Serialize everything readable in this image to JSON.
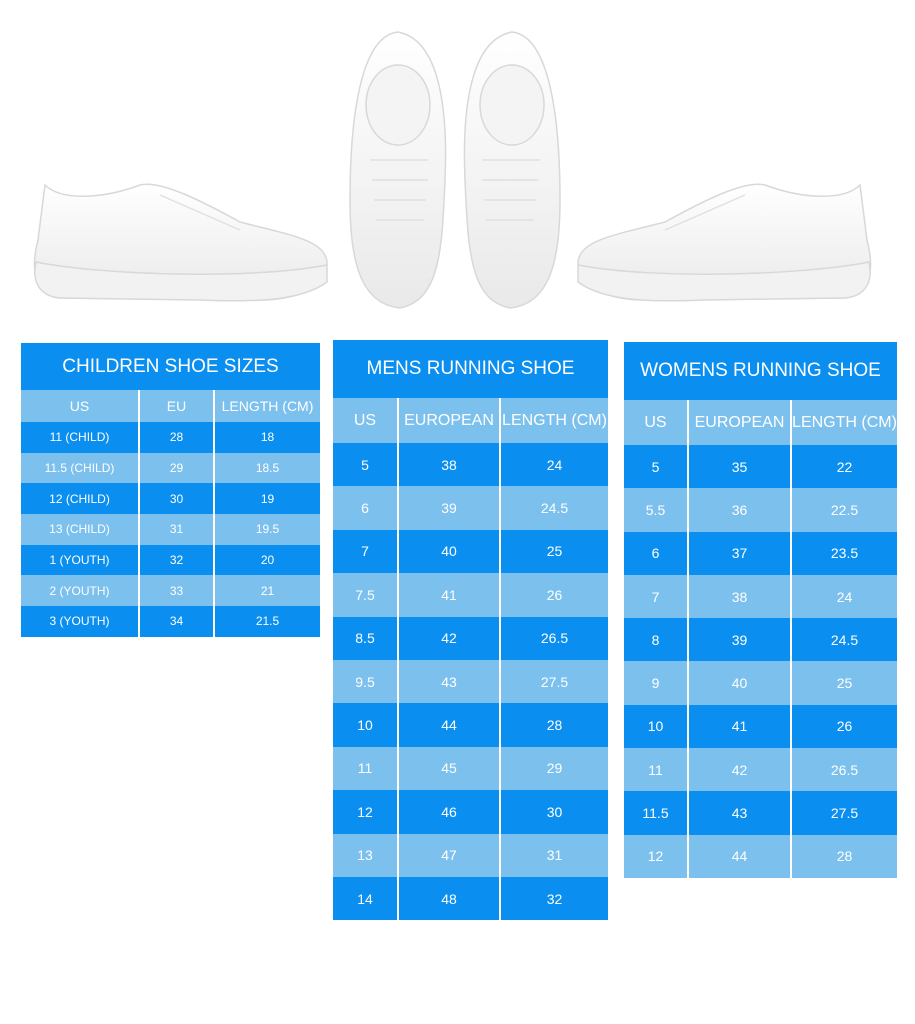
{
  "colors": {
    "dark_blue": "#0a8ff0",
    "light_blue": "#7cc0ee"
  },
  "tables": [
    {
      "id": "children",
      "title": "CHILDREN SHOE SIZES",
      "headers": [
        "US",
        "EU",
        "LENGTH (CM)"
      ],
      "rows": [
        [
          "11 (CHILD)",
          "28",
          "18"
        ],
        [
          "11.5 (CHILD)",
          "29",
          "18.5"
        ],
        [
          "12 (CHILD)",
          "30",
          "19"
        ],
        [
          "13 (CHILD)",
          "31",
          "19.5"
        ],
        [
          "1 (YOUTH)",
          "32",
          "20"
        ],
        [
          "2 (YOUTH)",
          "33",
          "21"
        ],
        [
          "3 (YOUTH)",
          "34",
          "21.5"
        ]
      ]
    },
    {
      "id": "mens",
      "title": "MENS RUNNING SHOE",
      "headers": [
        "US",
        "EUROPEAN",
        "LENGTH (CM)"
      ],
      "rows": [
        [
          "5",
          "38",
          "24"
        ],
        [
          "6",
          "39",
          "24.5"
        ],
        [
          "7",
          "40",
          "25"
        ],
        [
          "7.5",
          "41",
          "26"
        ],
        [
          "8.5",
          "42",
          "26.5"
        ],
        [
          "9.5",
          "43",
          "27.5"
        ],
        [
          "10",
          "44",
          "28"
        ],
        [
          "11",
          "45",
          "29"
        ],
        [
          "12",
          "46",
          "30"
        ],
        [
          "13",
          "47",
          "31"
        ],
        [
          "14",
          "48",
          "32"
        ]
      ]
    },
    {
      "id": "womens",
      "title": "WOMENS RUNNING SHOE",
      "headers": [
        "US",
        "EUROPEAN",
        "LENGTH (CM)"
      ],
      "rows": [
        [
          "5",
          "35",
          "22"
        ],
        [
          "5.5",
          "36",
          "22.5"
        ],
        [
          "6",
          "37",
          "23.5"
        ],
        [
          "7",
          "38",
          "24"
        ],
        [
          "8",
          "39",
          "24.5"
        ],
        [
          "9",
          "40",
          "25"
        ],
        [
          "10",
          "41",
          "26"
        ],
        [
          "11",
          "42",
          "26.5"
        ],
        [
          "11.5",
          "43",
          "27.5"
        ],
        [
          "12",
          "44",
          "28"
        ]
      ]
    }
  ]
}
